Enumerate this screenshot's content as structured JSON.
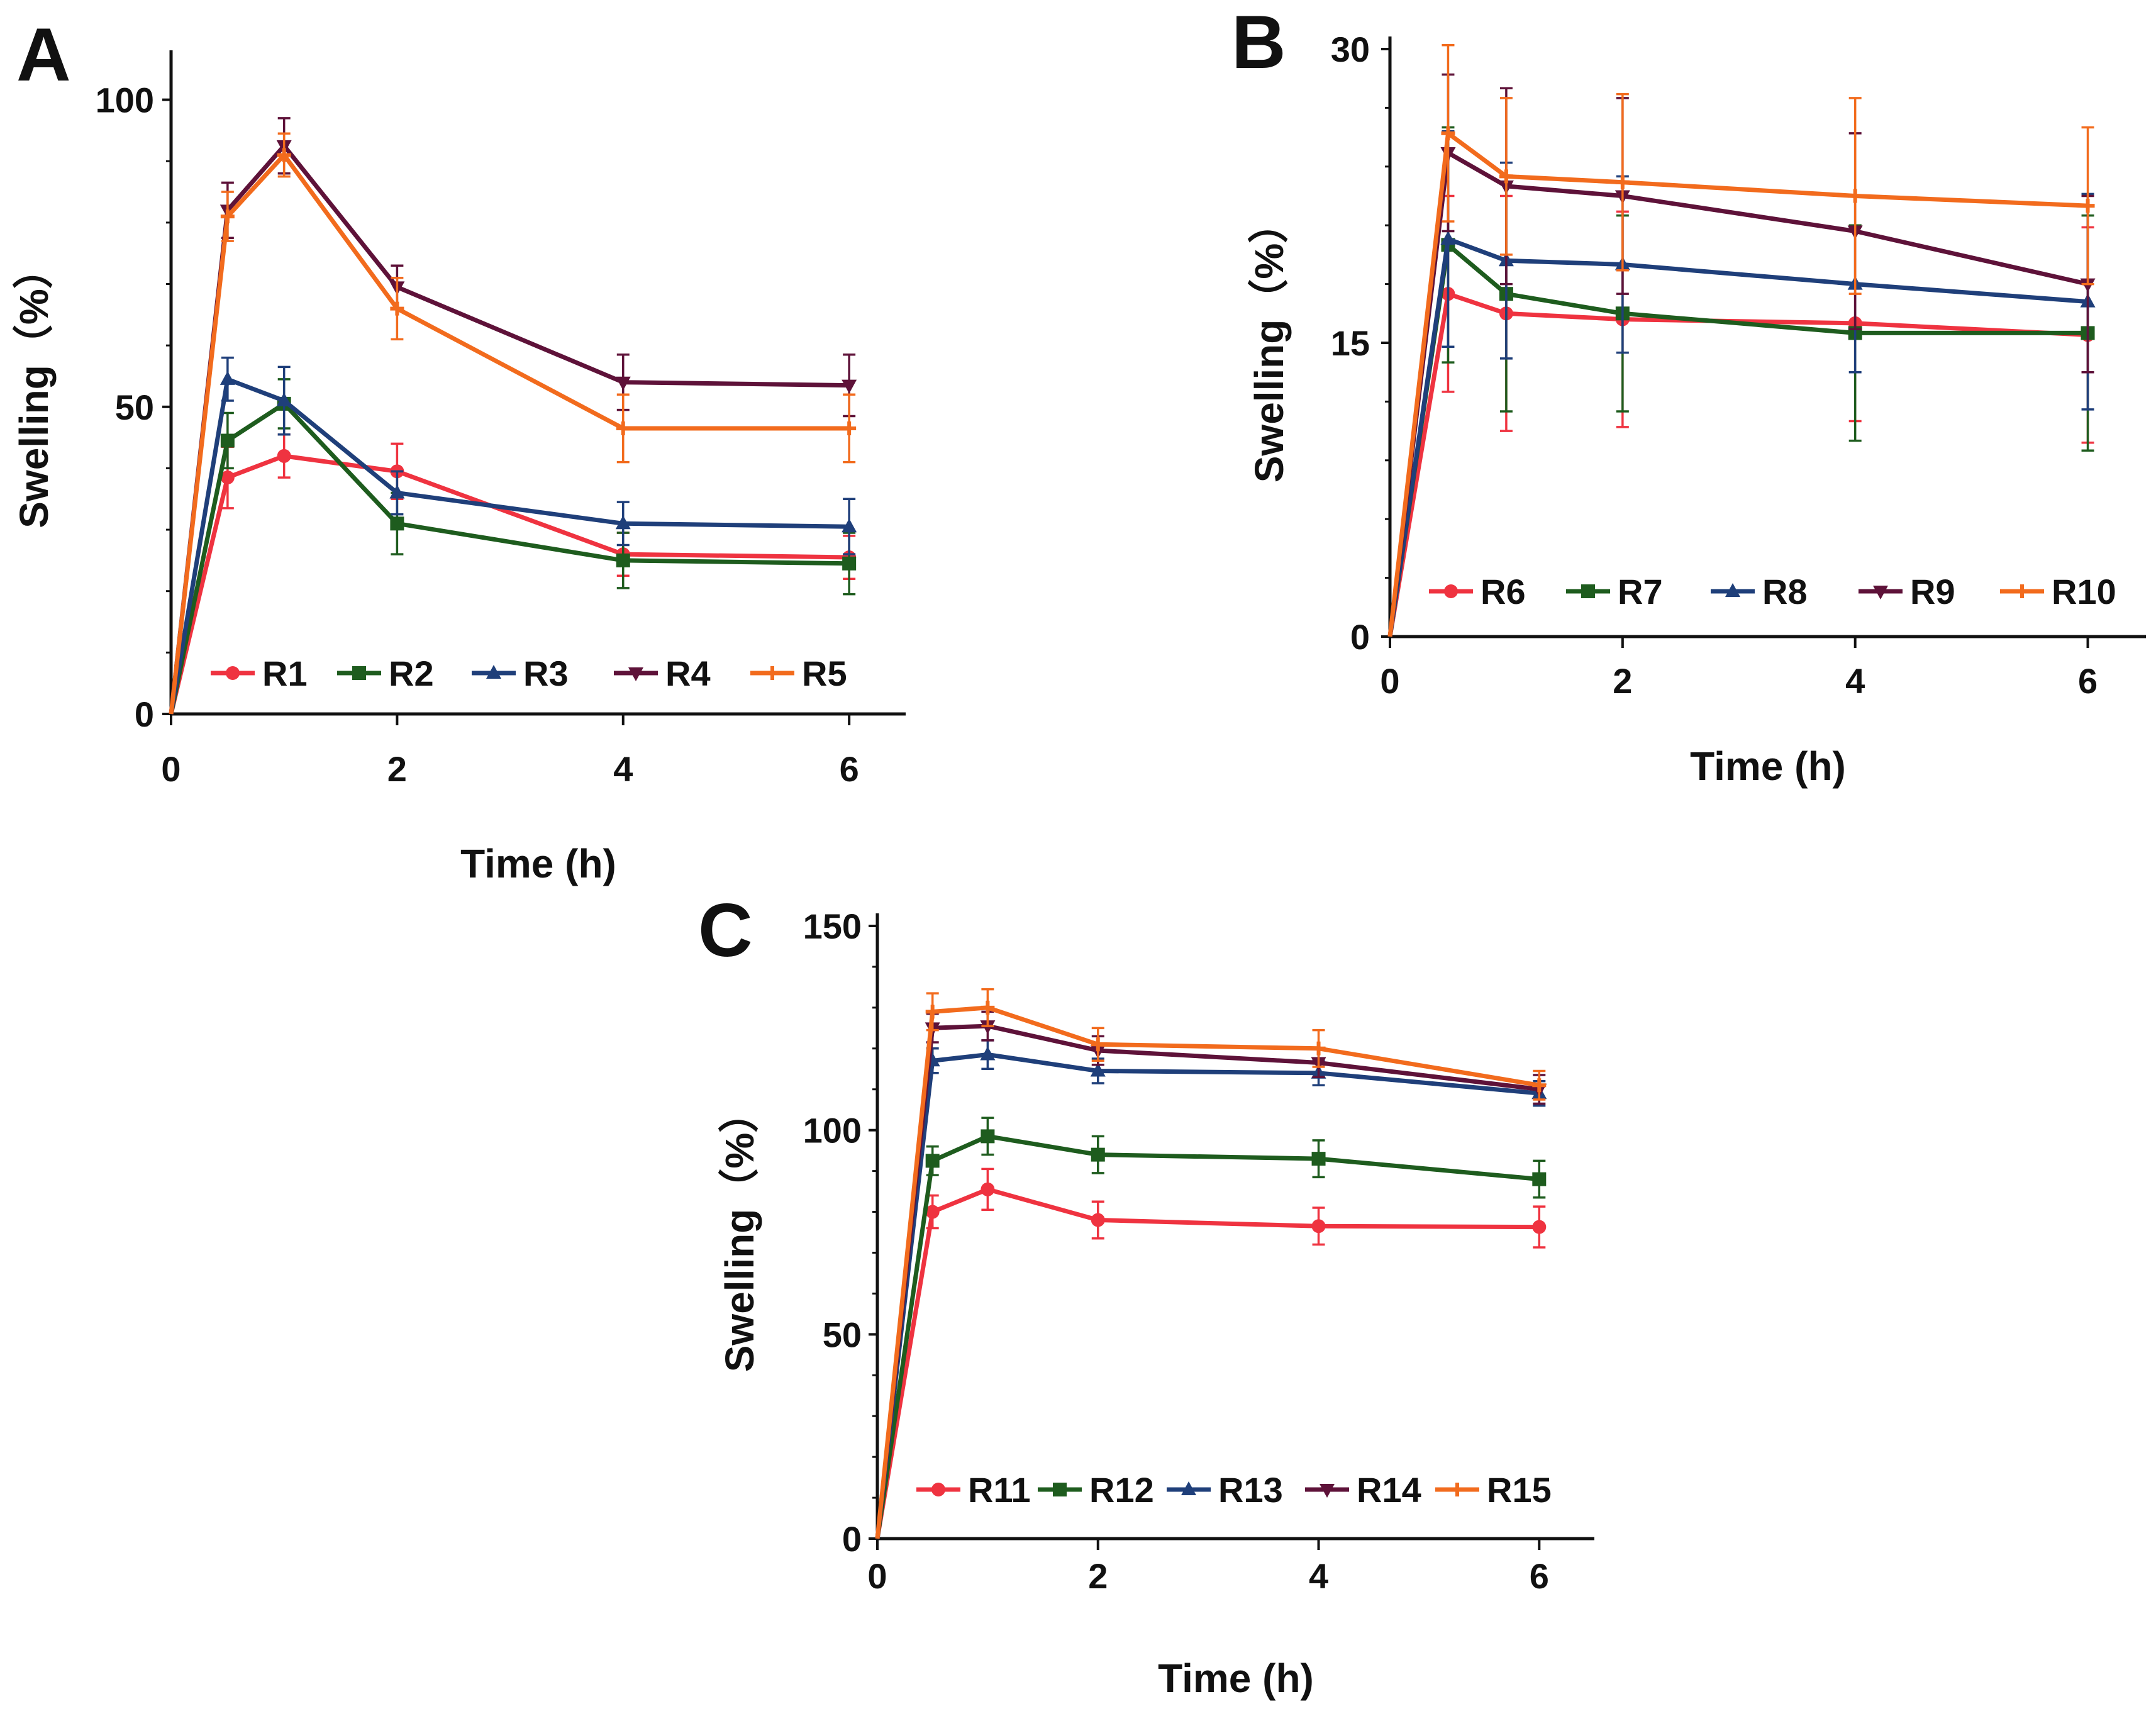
{
  "chart_data": [
    {
      "panel": "A",
      "type": "line",
      "xlabel": "Time (h)",
      "ylabel": "Swelling（%）",
      "x": [
        0,
        0.5,
        1,
        2,
        4,
        6
      ],
      "xticks": [
        0,
        2,
        4,
        6
      ],
      "xtick_labels": [
        "0",
        "2",
        "4",
        "6"
      ],
      "yticks": [
        0,
        50,
        100
      ],
      "ytick_labels": [
        "0",
        "50",
        "100"
      ],
      "xlim": [
        0,
        6.5
      ],
      "ylim": [
        0,
        106
      ],
      "legend_position": "bottom",
      "series": [
        {
          "name": "R1",
          "color": "#ef3340",
          "marker": "circle",
          "values": [
            0,
            38.5,
            42,
            39.5,
            26,
            25.5
          ],
          "errors": [
            0,
            5,
            3.5,
            4.5,
            3.5,
            3.5
          ]
        },
        {
          "name": "R2",
          "color": "#1e5c1e",
          "marker": "square",
          "values": [
            0,
            44.5,
            50.5,
            31,
            25,
            24.5
          ],
          "errors": [
            0,
            4.5,
            4,
            5,
            4.5,
            5
          ]
        },
        {
          "name": "R3",
          "color": "#1f3f7a",
          "marker": "triangle",
          "values": [
            0,
            54.5,
            51,
            36,
            31,
            30.5
          ],
          "errors": [
            0,
            3.5,
            5.5,
            3.5,
            3.5,
            4.5
          ]
        },
        {
          "name": "R4",
          "color": "#5e1239",
          "marker": "tri-down",
          "values": [
            0,
            82,
            92.5,
            69.5,
            54,
            53.5
          ],
          "errors": [
            0,
            4.5,
            4.5,
            3.5,
            4.5,
            5
          ]
        },
        {
          "name": "R5",
          "color": "#f26b1d",
          "marker": "cross",
          "values": [
            0,
            81,
            91,
            66,
            46.5,
            46.5
          ],
          "errors": [
            0,
            4,
            3.5,
            5,
            5.5,
            5.5
          ]
        }
      ]
    },
    {
      "panel": "B",
      "type": "line",
      "xlabel": "Time (h)",
      "ylabel": "Swelling（%）",
      "x": [
        0,
        0.5,
        1,
        2,
        4,
        6
      ],
      "xticks": [
        0,
        2,
        4,
        6
      ],
      "xtick_labels": [
        "0",
        "2",
        "4",
        "6"
      ],
      "yticks": [
        0,
        15,
        30
      ],
      "ytick_labels": [
        "0",
        "15",
        "30"
      ],
      "xlim": [
        0,
        6.5
      ],
      "ylim": [
        0,
        30
      ],
      "legend_position": "bottom",
      "series": [
        {
          "name": "R6",
          "color": "#ef3340",
          "marker": "circle",
          "values": [
            0,
            17.5,
            16.5,
            16.2,
            16,
            15.4
          ],
          "errors": [
            0,
            5,
            6,
            5.5,
            5,
            5.5
          ]
        },
        {
          "name": "R7",
          "color": "#1e5c1e",
          "marker": "square",
          "values": [
            0,
            20,
            17.5,
            16.5,
            15.5,
            15.5
          ],
          "errors": [
            0,
            6,
            6,
            5,
            5.5,
            6
          ]
        },
        {
          "name": "R8",
          "color": "#1f3f7a",
          "marker": "triangle",
          "values": [
            0,
            20.3,
            19.2,
            19,
            18,
            17.1
          ],
          "errors": [
            0,
            5.5,
            5,
            4.5,
            4.5,
            5.5
          ]
        },
        {
          "name": "R9",
          "color": "#5e1239",
          "marker": "tri-down",
          "values": [
            0,
            24.7,
            23,
            22.5,
            20.7,
            18
          ],
          "errors": [
            0,
            4,
            5,
            5,
            5,
            4.5
          ]
        },
        {
          "name": "R10",
          "color": "#f26b1d",
          "marker": "cross",
          "values": [
            0,
            25.7,
            23.5,
            23.2,
            22.5,
            22
          ],
          "errors": [
            0,
            4.5,
            4,
            4.5,
            5,
            4
          ]
        }
      ]
    },
    {
      "panel": "C",
      "type": "line",
      "xlabel": "Time (h)",
      "ylabel": "Swelling（%）",
      "x": [
        0,
        0.5,
        1,
        2,
        4,
        6
      ],
      "xticks": [
        0,
        2,
        4,
        6
      ],
      "xtick_labels": [
        "0",
        "2",
        "4",
        "6"
      ],
      "yticks": [
        0,
        50,
        100,
        150
      ],
      "ytick_labels": [
        "0",
        "50",
        "100",
        "150"
      ],
      "xlim": [
        0,
        6.5
      ],
      "ylim": [
        0,
        150
      ],
      "legend_position": "bottom",
      "series": [
        {
          "name": "R11",
          "color": "#ef3340",
          "marker": "circle",
          "values": [
            0,
            80,
            85.5,
            78,
            76.5,
            76.3
          ],
          "errors": [
            0,
            4,
            5,
            4.5,
            4.5,
            5
          ]
        },
        {
          "name": "R12",
          "color": "#1e5c1e",
          "marker": "square",
          "values": [
            0,
            92.5,
            98.5,
            94,
            93,
            88
          ],
          "errors": [
            0,
            3.5,
            4.5,
            4.5,
            4.5,
            4.5
          ]
        },
        {
          "name": "R13",
          "color": "#1f3f7a",
          "marker": "triangle",
          "values": [
            0,
            117,
            118.5,
            114.5,
            114,
            109
          ],
          "errors": [
            0,
            3,
            3.5,
            3,
            3,
            3
          ]
        },
        {
          "name": "R14",
          "color": "#5e1239",
          "marker": "tri-down",
          "values": [
            0,
            125,
            125.5,
            119.5,
            116.5,
            110
          ],
          "errors": [
            0,
            3.5,
            3.5,
            3.5,
            3.5,
            3.5
          ]
        },
        {
          "name": "R15",
          "color": "#f26b1d",
          "marker": "cross",
          "values": [
            0,
            129,
            130,
            121,
            120,
            111
          ],
          "errors": [
            0,
            4.5,
            4.5,
            4,
            4.5,
            3.5
          ]
        }
      ]
    }
  ]
}
